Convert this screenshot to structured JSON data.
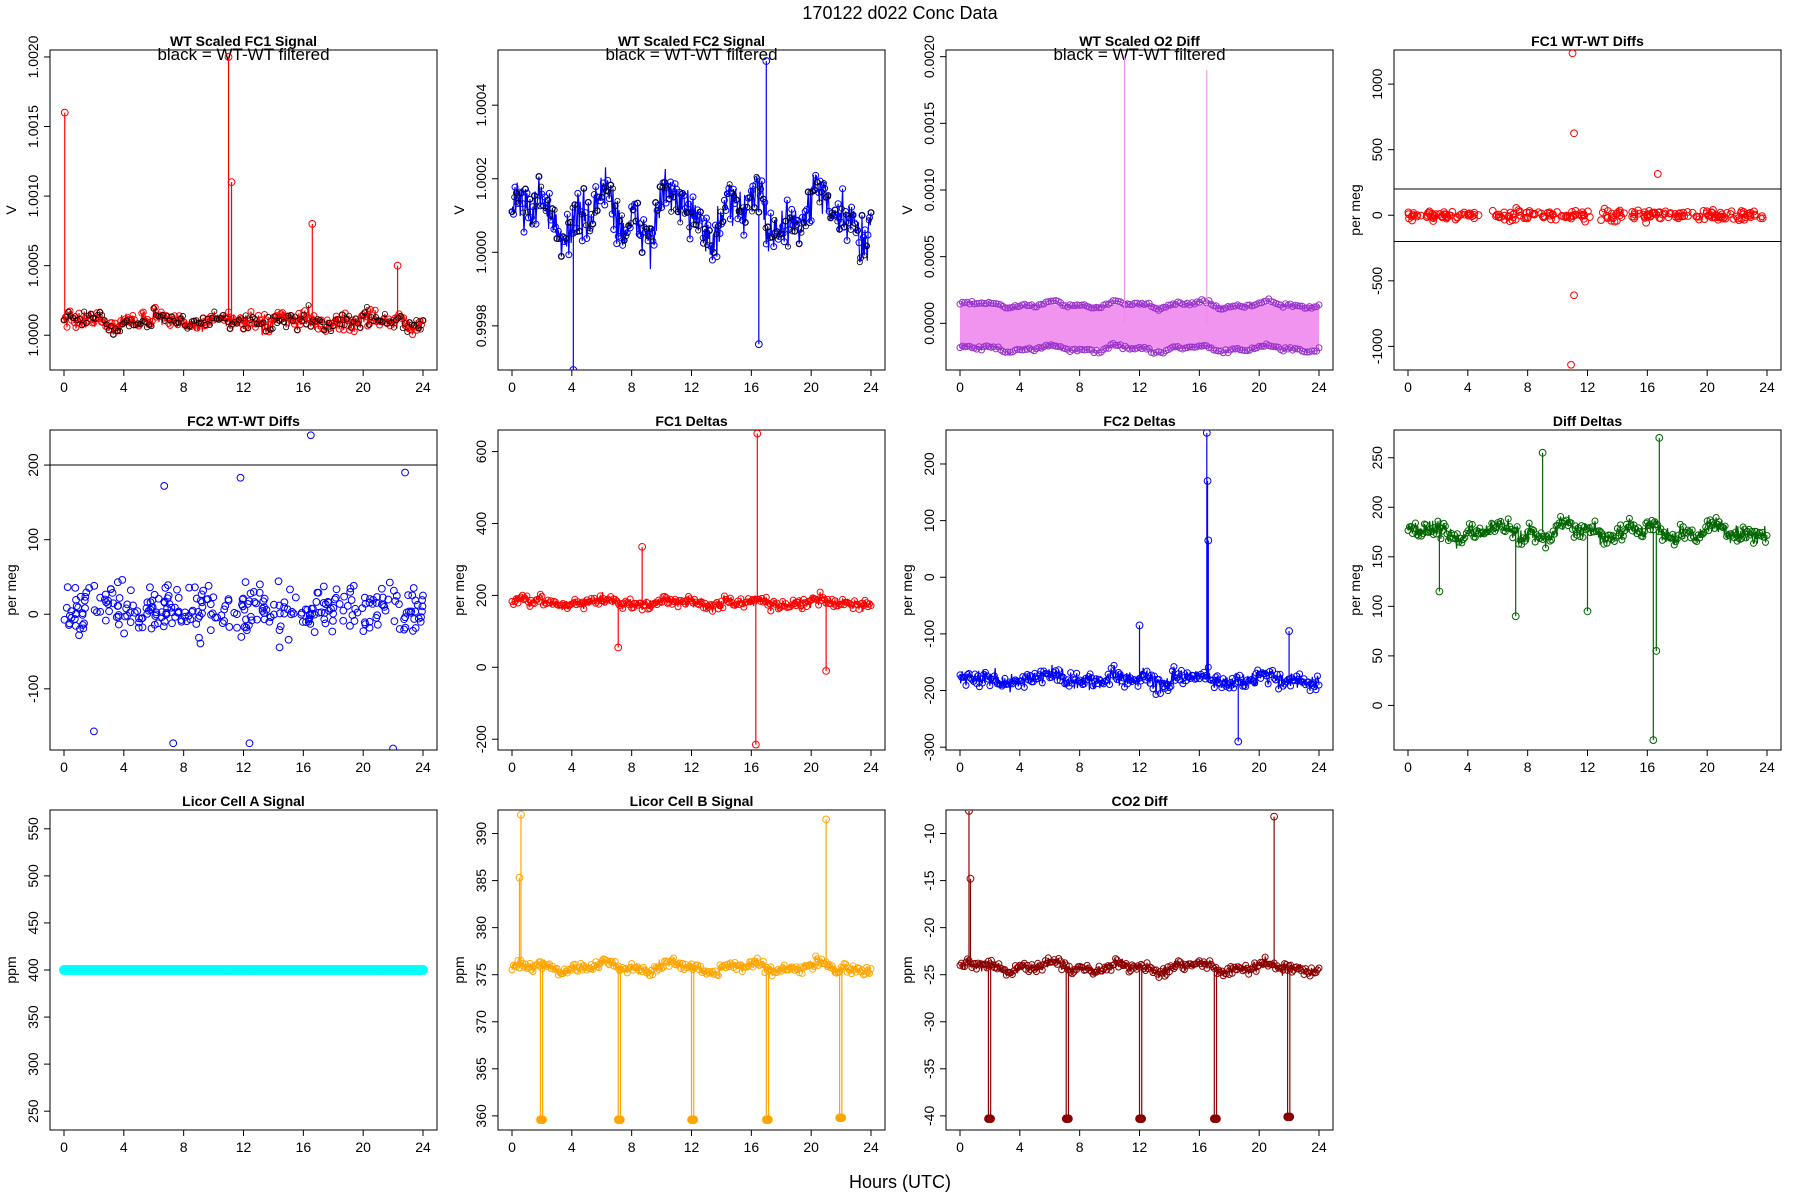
{
  "figure": {
    "main_title": "170122   d022   Conc Data",
    "xlabel": "Hours (UTC)"
  },
  "chart_data": [
    {
      "id": "fc1-signal",
      "type": "line",
      "title": "WT Scaled FC1 Signal",
      "ylabel": "V",
      "annotation": "black = WT-WT filtered",
      "color": "#ff0000",
      "xlim": [
        0,
        24
      ],
      "ylim": [
        0.99975,
        1.00205
      ],
      "xticks": [
        0,
        4,
        8,
        12,
        16,
        20,
        24
      ],
      "yticks": [
        1.0,
        1.0005,
        1.001,
        1.0015,
        1.002
      ],
      "ytick_labels": [
        "1.0000",
        "1.0005",
        "1.0010",
        "1.0015",
        "1.0020"
      ],
      "gen": {
        "base": 1.0001,
        "noise": 6e-05,
        "slow": 4e-05,
        "spikes": [
          [
            0.05,
            1.0016
          ],
          [
            11.0,
            1.002
          ],
          [
            11.2,
            1.0011
          ],
          [
            16.6,
            1.0008
          ],
          [
            22.3,
            1.0005
          ]
        ],
        "marker": "black-circles"
      }
    },
    {
      "id": "fc2-signal",
      "type": "line",
      "title": "WT Scaled FC2 Signal",
      "ylabel": "V",
      "annotation": "black = WT-WT filtered",
      "color": "#0000ff",
      "xlim": [
        0,
        24
      ],
      "ylim": [
        0.99968,
        1.00055
      ],
      "xticks": [
        0,
        4,
        8,
        12,
        16,
        20,
        24
      ],
      "yticks": [
        0.9998,
        1.0,
        1.0002,
        1.0004
      ],
      "ytick_labels": [
        "0.9998",
        "1.0000",
        "1.0002",
        "1.0004"
      ],
      "gen": {
        "base": 1.0001,
        "noise": 6e-05,
        "slow": 8e-05,
        "spikes": [
          [
            17.0,
            1.00052
          ],
          [
            4.1,
            0.99968
          ],
          [
            16.5,
            0.99975
          ]
        ],
        "marker": "black-circles"
      }
    },
    {
      "id": "o2-diff",
      "type": "line",
      "title": "WT Scaled O2 Diff",
      "ylabel": "V",
      "annotation": "black = WT-WT filtered",
      "color": "#cc66ff",
      "xlim": [
        0,
        24
      ],
      "ylim": [
        -0.00035,
        0.00205
      ],
      "xticks": [
        0,
        4,
        8,
        12,
        16,
        20,
        24
      ],
      "yticks": [
        0.0,
        0.0005,
        0.001,
        0.0015,
        0.002
      ],
      "ytick_labels": [
        "0.0000",
        "0.0005",
        "0.0010",
        "0.0015",
        "0.0020"
      ],
      "gen": {
        "bands": [
          0.00014,
          -0.00019
        ],
        "spikes": [
          [
            11.0,
            0.002
          ],
          [
            16.5,
            0.0019
          ]
        ]
      }
    },
    {
      "id": "fc1-wtwt",
      "type": "scatter",
      "title": "FC1 WT-WT Diffs",
      "ylabel": "per meg",
      "color": "#ff0000",
      "xlim": [
        0,
        24
      ],
      "ylim": [
        -1180,
        1260
      ],
      "xticks": [
        0,
        4,
        8,
        12,
        16,
        20,
        24
      ],
      "yticks": [
        -1000,
        -500,
        0,
        500,
        1000
      ],
      "ytick_labels": [
        "-1000",
        "-500",
        "0",
        "500",
        "1000"
      ],
      "hlines": [
        200,
        -200
      ],
      "gen": {
        "base": 0,
        "noise": 40,
        "n": 260,
        "outliers": [
          [
            11.0,
            1235
          ],
          [
            11.1,
            625
          ],
          [
            11.1,
            -610
          ],
          [
            10.9,
            -1140
          ],
          [
            16.7,
            315
          ]
        ]
      }
    },
    {
      "id": "fc2-wtwt",
      "type": "scatter",
      "title": "FC2 WT-WT Diffs",
      "ylabel": "per meg",
      "color": "#0000ff",
      "xlim": [
        0,
        24
      ],
      "ylim": [
        -182,
        247
      ],
      "xticks": [
        0,
        4,
        8,
        12,
        16,
        20,
        24
      ],
      "yticks": [
        -100,
        0,
        100,
        200
      ],
      "ytick_labels": [
        "-100",
        "0",
        "100",
        "200"
      ],
      "hlines": [
        200
      ],
      "gen": {
        "base": 5,
        "noise": 32,
        "n": 320,
        "outliers": [
          [
            16.5,
            240
          ],
          [
            11.8,
            183
          ],
          [
            22.8,
            190
          ],
          [
            6.7,
            172
          ],
          [
            2.0,
            -157
          ],
          [
            7.3,
            -173
          ],
          [
            12.4,
            -173
          ],
          [
            22.0,
            -180
          ]
        ]
      }
    },
    {
      "id": "fc1-deltas",
      "type": "line",
      "title": "FC1 Deltas",
      "ylabel": "per meg",
      "color": "#ff0000",
      "xlim": [
        0,
        24
      ],
      "ylim": [
        -230,
        660
      ],
      "xticks": [
        0,
        4,
        8,
        12,
        16,
        20,
        24
      ],
      "yticks": [
        -200,
        0,
        200,
        400,
        600
      ],
      "ytick_labels": [
        "-200",
        "0",
        "200",
        "400",
        "600"
      ],
      "gen": {
        "base": 180,
        "noise": 14,
        "slow": 10,
        "spikes": [
          [
            16.4,
            650
          ],
          [
            16.3,
            -215
          ],
          [
            8.7,
            335
          ],
          [
            21.0,
            -10
          ],
          [
            7.1,
            55
          ]
        ]
      }
    },
    {
      "id": "fc2-deltas",
      "type": "line",
      "title": "FC2 Deltas",
      "ylabel": "per meg",
      "color": "#0000ff",
      "xlim": [
        0,
        24
      ],
      "ylim": [
        -305,
        260
      ],
      "xticks": [
        0,
        4,
        8,
        12,
        16,
        20,
        24
      ],
      "yticks": [
        -300,
        -200,
        -100,
        0,
        100,
        200
      ],
      "ytick_labels": [
        "-300",
        "-200",
        "-100",
        "0",
        "100",
        "200"
      ],
      "gen": {
        "base": -180,
        "noise": 14,
        "slow": 10,
        "spikes": [
          [
            16.5,
            255
          ],
          [
            16.55,
            170
          ],
          [
            16.6,
            65
          ],
          [
            12.0,
            -85
          ],
          [
            18.6,
            -290
          ],
          [
            22.0,
            -95
          ]
        ]
      }
    },
    {
      "id": "diff-deltas",
      "type": "line",
      "title": "Diff Deltas",
      "ylabel": "per meg",
      "color": "#006600",
      "xlim": [
        0,
        24
      ],
      "ylim": [
        -45,
        278
      ],
      "xticks": [
        0,
        4,
        8,
        12,
        16,
        20,
        24
      ],
      "yticks": [
        0,
        50,
        100,
        150,
        200,
        250
      ],
      "ytick_labels": [
        "0",
        "50",
        "100",
        "150",
        "200",
        "250"
      ],
      "gen": {
        "base": 175,
        "noise": 8,
        "slow": 8,
        "spikes": [
          [
            16.4,
            -35
          ],
          [
            16.8,
            270
          ],
          [
            9.0,
            255
          ],
          [
            16.6,
            55
          ],
          [
            2.1,
            115
          ],
          [
            7.2,
            90
          ],
          [
            12.0,
            95
          ]
        ]
      }
    },
    {
      "id": "licor-a",
      "type": "line",
      "title": "Licor Cell A Signal",
      "ylabel": "ppm",
      "color": "#00ffff",
      "xlim": [
        0,
        24
      ],
      "ylim": [
        230,
        570
      ],
      "xticks": [
        0,
        4,
        8,
        12,
        16,
        20,
        24
      ],
      "yticks": [
        250,
        300,
        350,
        400,
        450,
        500,
        550
      ],
      "ytick_labels": [
        "250",
        "300",
        "350",
        "400",
        "450",
        "500",
        "550"
      ],
      "gen": {
        "flat": 400
      }
    },
    {
      "id": "licor-b",
      "type": "line",
      "title": "Licor Cell B Signal",
      "ylabel": "ppm",
      "color": "#ffa500",
      "xlim": [
        0,
        24
      ],
      "ylim": [
        358.5,
        392.5
      ],
      "xticks": [
        0,
        4,
        8,
        12,
        16,
        20,
        24
      ],
      "yticks": [
        360,
        365,
        370,
        375,
        380,
        385,
        390
      ],
      "ytick_labels": [
        "360",
        "365",
        "370",
        "375",
        "380",
        "385",
        "390"
      ],
      "gen": {
        "base": 375.8,
        "noise": 0.5,
        "slow": 0.6,
        "drops": [
          [
            1.9,
            359.6
          ],
          [
            7.1,
            359.6
          ],
          [
            12.0,
            359.6
          ],
          [
            17.0,
            359.6
          ],
          [
            21.9,
            359.8
          ]
        ],
        "spikes": [
          [
            0.6,
            392
          ],
          [
            21.0,
            391.5
          ],
          [
            0.5,
            385.3
          ]
        ]
      }
    },
    {
      "id": "co2-diff",
      "type": "line",
      "title": "CO2 Diff",
      "ylabel": "ppm",
      "color": "#8b0000",
      "xlim": [
        0,
        24
      ],
      "ylim": [
        -41.5,
        -7.5
      ],
      "xticks": [
        0,
        4,
        8,
        12,
        16,
        20,
        24
      ],
      "yticks": [
        -40,
        -35,
        -30,
        -25,
        -20,
        -15,
        -10
      ],
      "ytick_labels": [
        "-40",
        "-35",
        "-30",
        "-25",
        "-20",
        "-15",
        "-10"
      ],
      "gen": {
        "base": -24.2,
        "noise": 0.5,
        "slow": 0.6,
        "drops": [
          [
            1.9,
            -40.3
          ],
          [
            7.1,
            -40.3
          ],
          [
            12.0,
            -40.3
          ],
          [
            17.0,
            -40.3
          ],
          [
            21.9,
            -40.1
          ]
        ],
        "spikes": [
          [
            0.6,
            -7.6
          ],
          [
            21.0,
            -8.2
          ],
          [
            0.7,
            -14.8
          ]
        ]
      }
    }
  ]
}
